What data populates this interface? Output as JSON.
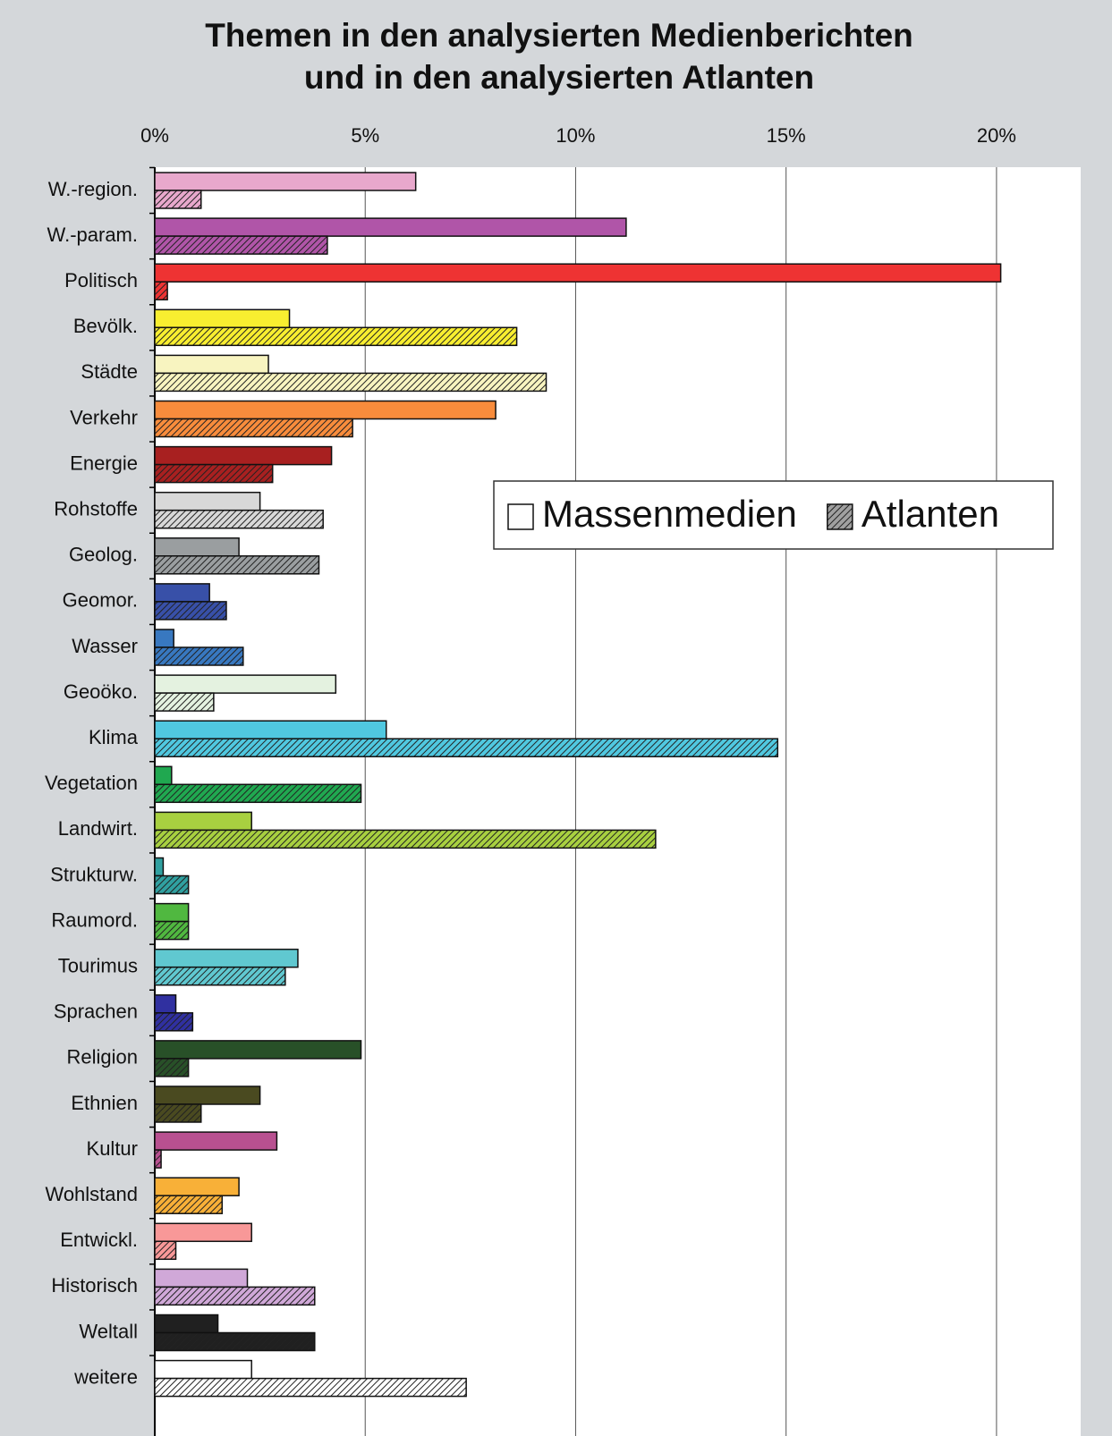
{
  "chart_data": {
    "type": "bar",
    "orientation": "horizontal",
    "title": [
      "Themen in den analysierten Medienberichten",
      "und in den analysierten Atlanten"
    ],
    "categories": [
      "W.-region.",
      "W.-param.",
      "Politisch",
      "Bevölk.",
      "Städte",
      "Verkehr",
      "Energie",
      "Rohstoffe",
      "Geolog.",
      "Geomor.",
      "Wasser",
      "Geoöko.",
      "Klima",
      "Vegetation",
      "Landwirt.",
      "Strukturw.",
      "Raumord.",
      "Tourimus",
      "Sprachen",
      "Religion",
      "Ethnien",
      "Kultur",
      "Wohlstand",
      "Entwickl.",
      "Historisch",
      "Weltall",
      "weitere"
    ],
    "colors": [
      "#e8a8cc",
      "#b055a8",
      "#ee3333",
      "#f8ee30",
      "#f8f4c0",
      "#f88c3c",
      "#a82020",
      "#d8d8d8",
      "#9a9ea0",
      "#3850a8",
      "#3878c0",
      "#e4f2e0",
      "#50c8e0",
      "#20a850",
      "#a8d040",
      "#30a0a0",
      "#50b840",
      "#60c8d0",
      "#3030a0",
      "#285028",
      "#4a4a20",
      "#b85090",
      "#f8b038",
      "#f89898",
      "#d0a8d8",
      "#202020",
      "#ffffff"
    ],
    "series": [
      {
        "name": "Massenmedien",
        "color": "#ffffff",
        "fill": "solid",
        "values": [
          6.2,
          11.2,
          20.1,
          3.2,
          2.7,
          8.1,
          4.2,
          2.5,
          2.0,
          1.3,
          0.45,
          4.3,
          5.5,
          0.4,
          2.3,
          0.2,
          0.8,
          3.4,
          0.5,
          4.9,
          2.5,
          2.9,
          2.0,
          2.3,
          2.2,
          1.5,
          2.3
        ]
      },
      {
        "name": "Atlanten",
        "color": "#a0a0a0",
        "fill": "hatch",
        "values": [
          1.1,
          4.1,
          0.3,
          8.6,
          9.3,
          4.7,
          2.8,
          4.0,
          3.9,
          1.7,
          2.1,
          1.4,
          14.8,
          4.9,
          11.9,
          0.8,
          0.8,
          3.1,
          0.9,
          0.8,
          1.1,
          0.15,
          1.6,
          0.5,
          3.8,
          3.8,
          7.4
        ]
      }
    ],
    "xlim": [
      0,
      22
    ],
    "xticks": [
      {
        "value": 0,
        "label": "0%"
      },
      {
        "value": 5,
        "label": "5%"
      },
      {
        "value": 10,
        "label": "10%"
      },
      {
        "value": 15,
        "label": "15%"
      },
      {
        "value": 20,
        "label": "20%"
      }
    ],
    "grid": true,
    "legend": "right"
  }
}
